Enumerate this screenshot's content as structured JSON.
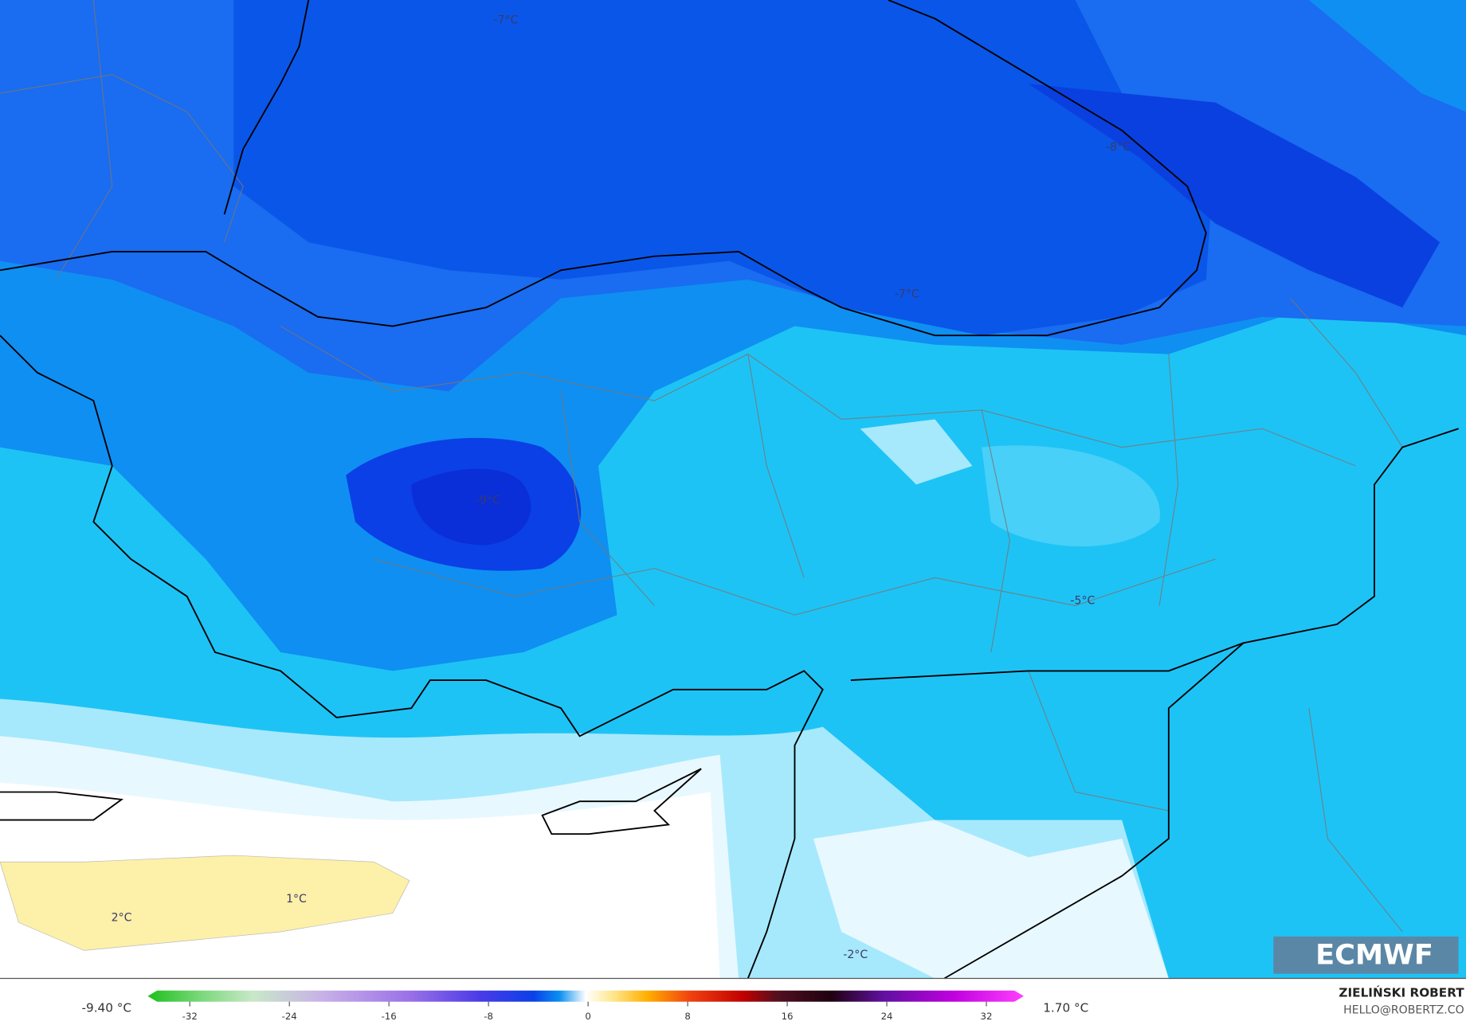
{
  "map": {
    "labels": [
      "-7°C",
      "-8°C",
      "-7°C",
      "-9°C",
      "-5°C",
      "1°C",
      "2°C",
      "-2°C"
    ]
  },
  "colorbar": {
    "min_label": "-9.40 °C",
    "max_label": "1.70 °C",
    "ticks": [
      -32,
      -24,
      -16,
      -8,
      0,
      8,
      16,
      24,
      32
    ]
  },
  "logo": "ECMWF",
  "author": "ZIELIŃSKI ROBERT",
  "email": "HELLO@ROBERTZ.CO"
}
